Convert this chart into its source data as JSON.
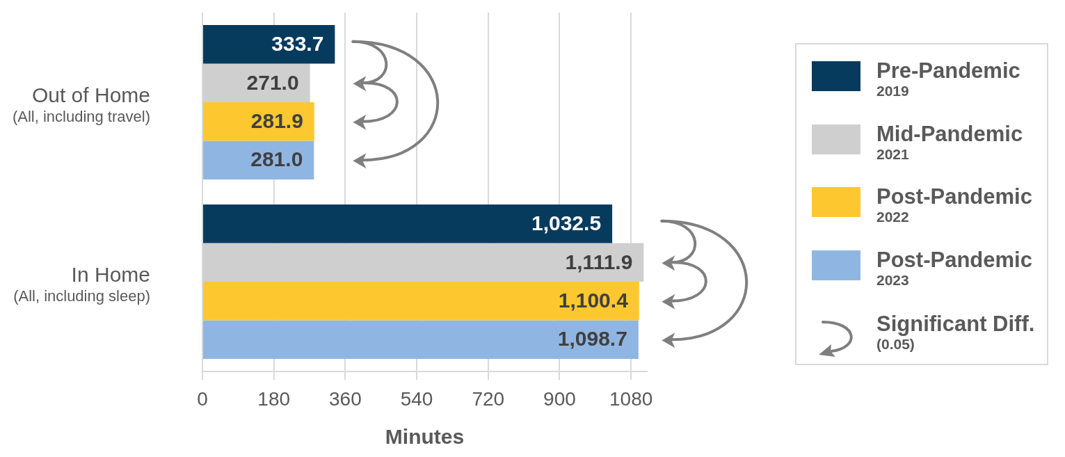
{
  "chart_data": {
    "type": "bar",
    "orientation": "horizontal",
    "xlabel": "Minutes",
    "categories": [
      "Out of Home\n(All, including travel)",
      "In Home\n(All, including sleep)"
    ],
    "series": [
      {
        "name": "Pre-Pandemic\n2019",
        "color": "#073b5e",
        "values": [
          333.7,
          1032.5
        ],
        "value_labels": [
          "333.7",
          "1,032.5"
        ]
      },
      {
        "name": "Mid-Pandemic\n2021",
        "color": "#d0cfcf",
        "values": [
          271.0,
          1111.9
        ],
        "value_labels": [
          "271.0",
          "1,111.9"
        ]
      },
      {
        "name": "Post-Pandemic\n2022",
        "color": "#fdc82f",
        "values": [
          281.9,
          1100.4
        ],
        "value_labels": [
          "281.9",
          "1,100.4"
        ]
      },
      {
        "name": "Post-Pandemic\n2023",
        "color": "#8fb6e2",
        "values": [
          281.0,
          1098.7
        ],
        "value_labels": [
          "281.0",
          "1,098.7"
        ]
      }
    ],
    "xlim": [
      0,
      1120
    ],
    "xticks": [
      0,
      180,
      360,
      540,
      720,
      900,
      1080
    ],
    "grid": "x",
    "legend": "right",
    "annotations": [
      "Significant Diff.\n(0.05)"
    ]
  }
}
